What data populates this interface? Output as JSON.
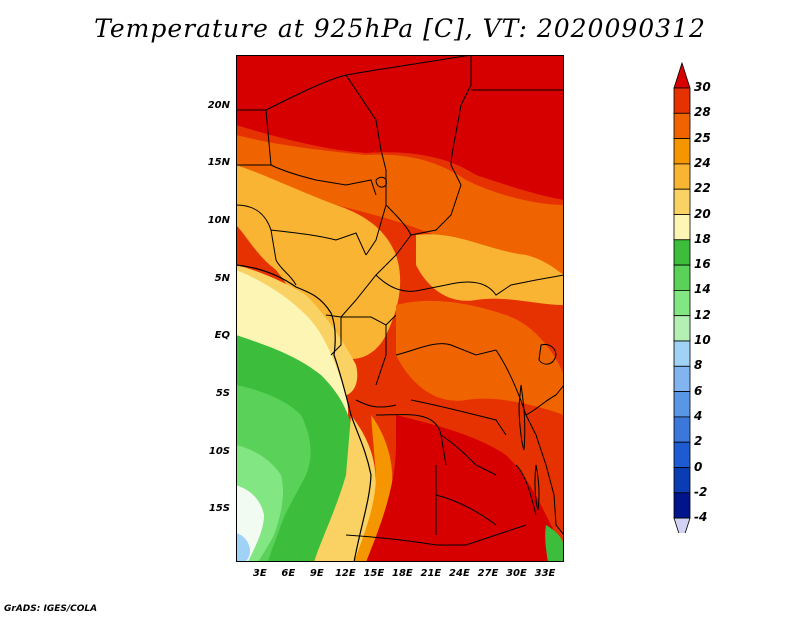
{
  "title": "Temperature at 925hPa [C], VT: 2020090312",
  "footer": "GrADS: IGES/COLA",
  "map": {
    "lat_labels": [
      "20N",
      "15N",
      "10N",
      "5N",
      "EQ",
      "5S",
      "10S",
      "15S"
    ],
    "lon_labels": [
      "3E",
      "6E",
      "9E",
      "12E",
      "15E",
      "18E",
      "21E",
      "24E",
      "27E",
      "30E",
      "33E"
    ],
    "lat_range": [
      -19.5,
      24.5
    ],
    "lon_range": [
      0.5,
      35
    ]
  },
  "colorbar": {
    "labels": [
      "30",
      "28",
      "25",
      "24",
      "22",
      "20",
      "18",
      "16",
      "14",
      "12",
      "10",
      "8",
      "6",
      "4",
      "2",
      "0",
      "-2",
      "-4"
    ],
    "colors": [
      "#d70000",
      "#e63200",
      "#f06400",
      "#f59600",
      "#f8b432",
      "#fad264",
      "#fdf5b4",
      "#3cbe3c",
      "#5ad25a",
      "#82e682",
      "#b4f0b4",
      "#a0d2f5",
      "#82b4f0",
      "#5a96e6",
      "#3c78dc",
      "#1e5ad2",
      "#0a3cb4",
      "#00148c",
      "#d2d2f5"
    ]
  }
}
